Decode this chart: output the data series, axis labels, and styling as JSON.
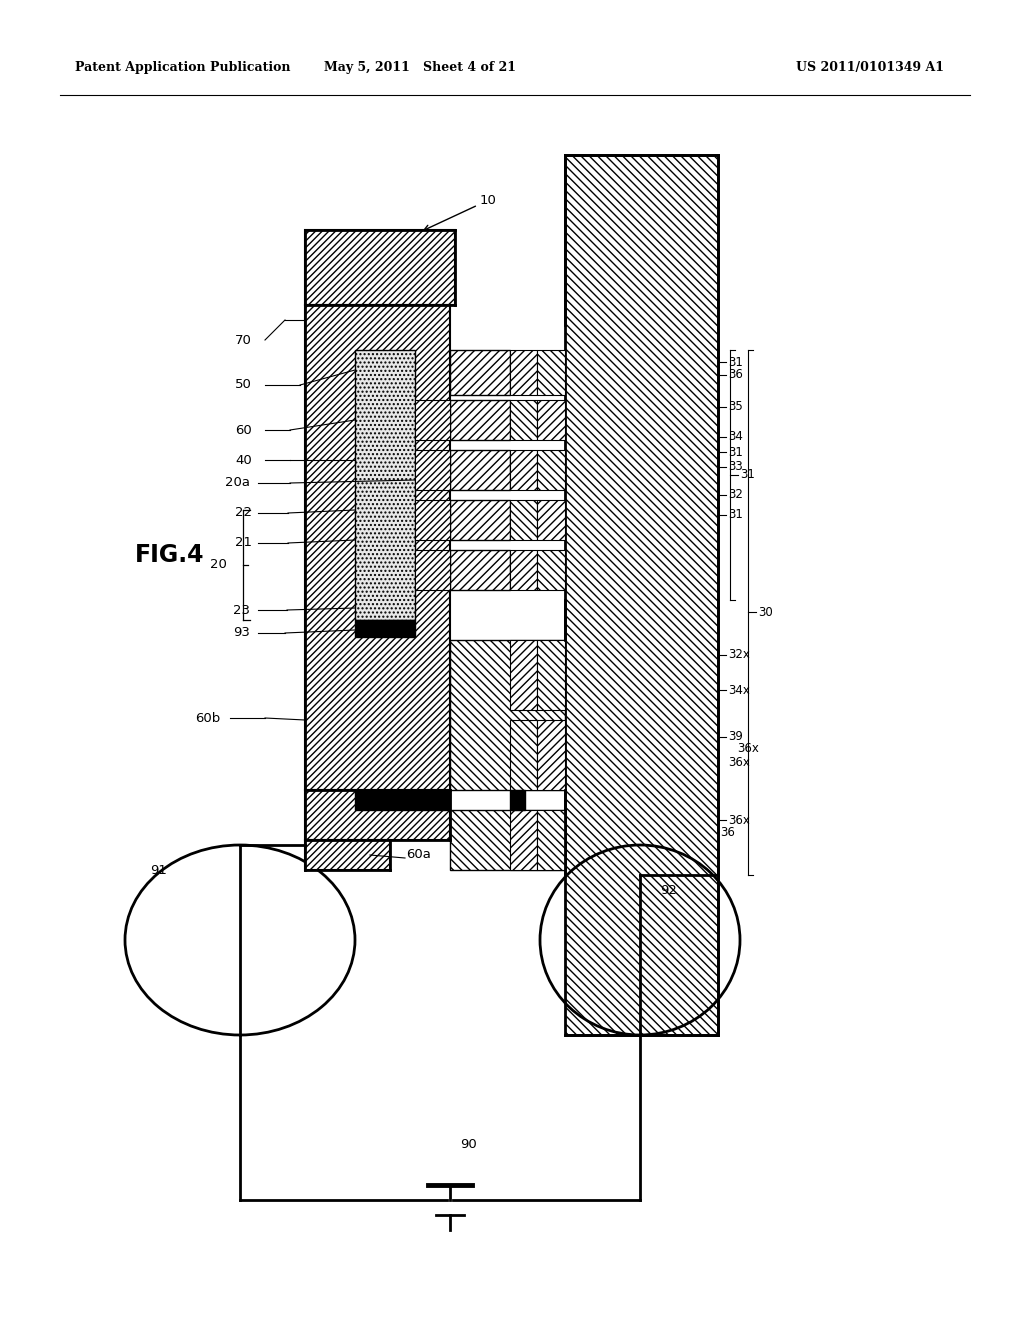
{
  "title_left": "Patent Application Publication",
  "title_mid": "May 5, 2011   Sheet 4 of 21",
  "title_right": "US 2011/0101349 A1",
  "fig_label": "FIG.4",
  "bg_color": "#ffffff"
}
